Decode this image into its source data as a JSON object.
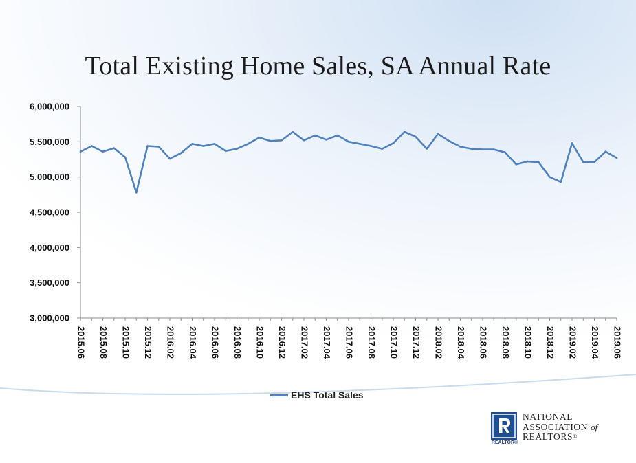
{
  "slide": {
    "title": "Total Existing Home Sales, SA Annual Rate"
  },
  "legend": {
    "label": "EHS Total Sales"
  },
  "logo": {
    "line1": "NATIONAL",
    "line2": "ASSOCIATION",
    "of": "of",
    "line3": "REALTORS",
    "registered": "®",
    "mark_letter": "R",
    "small_text": "REALTOR®"
  },
  "colors": {
    "series": "#4f81bd",
    "logo_blue": "#1f4f8f",
    "background_gradient_top": "#dce9f6"
  },
  "chart_data": {
    "type": "line",
    "title": "Total Existing Home Sales, SA Annual Rate",
    "xlabel": "",
    "ylabel": "",
    "ylim": [
      3000000,
      6000000
    ],
    "yticks": [
      "3,000,000",
      "3,500,000",
      "4,000,000",
      "4,500,000",
      "5,000,000",
      "5,500,000",
      "6,000,000"
    ],
    "ytick_values": [
      3000000,
      3500000,
      4000000,
      4500000,
      5000000,
      5500000,
      6000000
    ],
    "x": [
      "2015.06",
      "2015.07",
      "2015.08",
      "2015.09",
      "2015.10",
      "2015.11",
      "2015.12",
      "2016.01",
      "2016.02",
      "2016.03",
      "2016.04",
      "2016.05",
      "2016.06",
      "2016.07",
      "2016.08",
      "2016.09",
      "2016.10",
      "2016.11",
      "2016.12",
      "2017.01",
      "2017.02",
      "2017.03",
      "2017.04",
      "2017.05",
      "2017.06",
      "2017.07",
      "2017.08",
      "2017.09",
      "2017.10",
      "2017.11",
      "2017.12",
      "2018.01",
      "2018.02",
      "2018.03",
      "2018.04",
      "2018.05",
      "2018.06",
      "2018.07",
      "2018.08",
      "2018.09",
      "2018.10",
      "2018.11",
      "2018.12",
      "2019.01",
      "2019.02",
      "2019.03",
      "2019.04",
      "2019.05",
      "2019.06"
    ],
    "xtick_labels": [
      "2015.06",
      "2015.08",
      "2015.10",
      "2015.12",
      "2016.02",
      "2016.04",
      "2016.06",
      "2016.08",
      "2016.10",
      "2016.12",
      "2017.02",
      "2017.04",
      "2017.06",
      "2017.08",
      "2017.10",
      "2017.12",
      "2018.02",
      "2018.04",
      "2018.06",
      "2018.08",
      "2018.10",
      "2018.12",
      "2019.02",
      "2019.04",
      "2019.06"
    ],
    "legend_position": "bottom",
    "grid": false,
    "series": [
      {
        "name": "EHS Total Sales",
        "color": "#4f81bd",
        "values": [
          5360000,
          5440000,
          5360000,
          5410000,
          5280000,
          4780000,
          5440000,
          5430000,
          5260000,
          5340000,
          5470000,
          5440000,
          5470000,
          5370000,
          5400000,
          5470000,
          5560000,
          5510000,
          5520000,
          5640000,
          5520000,
          5590000,
          5530000,
          5590000,
          5500000,
          5470000,
          5440000,
          5400000,
          5480000,
          5640000,
          5570000,
          5400000,
          5610000,
          5510000,
          5430000,
          5400000,
          5390000,
          5390000,
          5350000,
          5180000,
          5220000,
          5210000,
          5000000,
          4930000,
          5480000,
          5210000,
          5210000,
          5360000,
          5270000
        ]
      }
    ]
  }
}
